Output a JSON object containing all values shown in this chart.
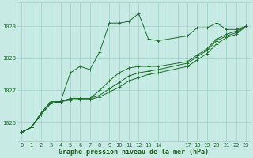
{
  "bg_color": "#c8eae4",
  "grid_color": "#9ecfc7",
  "line_color": "#1a6b2a",
  "xlabel": "Graphe pression niveau de la mer (hPa)",
  "xlabel_color": "#1a5c20",
  "ylim": [
    1025.4,
    1029.75
  ],
  "xlim": [
    -0.5,
    23.5
  ],
  "yticks": [
    1026,
    1027,
    1028,
    1029
  ],
  "xticks": [
    0,
    1,
    2,
    3,
    4,
    5,
    6,
    7,
    8,
    9,
    10,
    11,
    12,
    13,
    14,
    17,
    18,
    19,
    20,
    21,
    22,
    23
  ],
  "series": [
    {
      "x": [
        0,
        1,
        2,
        3,
        4,
        5,
        6,
        7,
        8,
        9,
        10,
        11,
        12,
        13,
        14,
        17,
        18,
        19,
        20,
        21,
        22,
        23
      ],
      "y": [
        1025.7,
        1025.85,
        1026.3,
        1026.65,
        1026.65,
        1027.55,
        1027.75,
        1027.65,
        1028.2,
        1029.1,
        1029.1,
        1029.15,
        1029.4,
        1028.6,
        1028.55,
        1028.7,
        1028.95,
        1028.95,
        1029.1,
        1028.9,
        1028.9,
        1029.0
      ]
    },
    {
      "x": [
        0,
        1,
        2,
        3,
        4,
        5,
        6,
        7,
        8,
        9,
        10,
        11,
        12,
        13,
        14,
        17,
        18,
        19,
        20,
        21,
        22,
        23
      ],
      "y": [
        1025.7,
        1025.85,
        1026.3,
        1026.65,
        1026.65,
        1026.75,
        1026.75,
        1026.75,
        1027.0,
        1027.3,
        1027.55,
        1027.7,
        1027.75,
        1027.75,
        1027.75,
        1027.9,
        1028.1,
        1028.3,
        1028.6,
        1028.75,
        1028.85,
        1029.0
      ]
    },
    {
      "x": [
        0,
        1,
        2,
        3,
        4,
        5,
        6,
        7,
        8,
        9,
        10,
        11,
        12,
        13,
        14,
        17,
        18,
        19,
        20,
        21,
        22,
        23
      ],
      "y": [
        1025.7,
        1025.85,
        1026.25,
        1026.6,
        1026.65,
        1026.75,
        1026.75,
        1026.75,
        1026.85,
        1027.05,
        1027.25,
        1027.45,
        1027.55,
        1027.6,
        1027.65,
        1027.85,
        1028.05,
        1028.25,
        1028.55,
        1028.7,
        1028.8,
        1029.0
      ]
    },
    {
      "x": [
        0,
        1,
        2,
        3,
        4,
        5,
        6,
        7,
        8,
        9,
        10,
        11,
        12,
        13,
        14,
        17,
        18,
        19,
        20,
        21,
        22,
        23
      ],
      "y": [
        1025.7,
        1025.85,
        1026.25,
        1026.6,
        1026.65,
        1026.7,
        1026.72,
        1026.72,
        1026.8,
        1026.95,
        1027.1,
        1027.3,
        1027.4,
        1027.5,
        1027.55,
        1027.75,
        1027.95,
        1028.15,
        1028.45,
        1028.65,
        1028.75,
        1029.0
      ]
    }
  ]
}
